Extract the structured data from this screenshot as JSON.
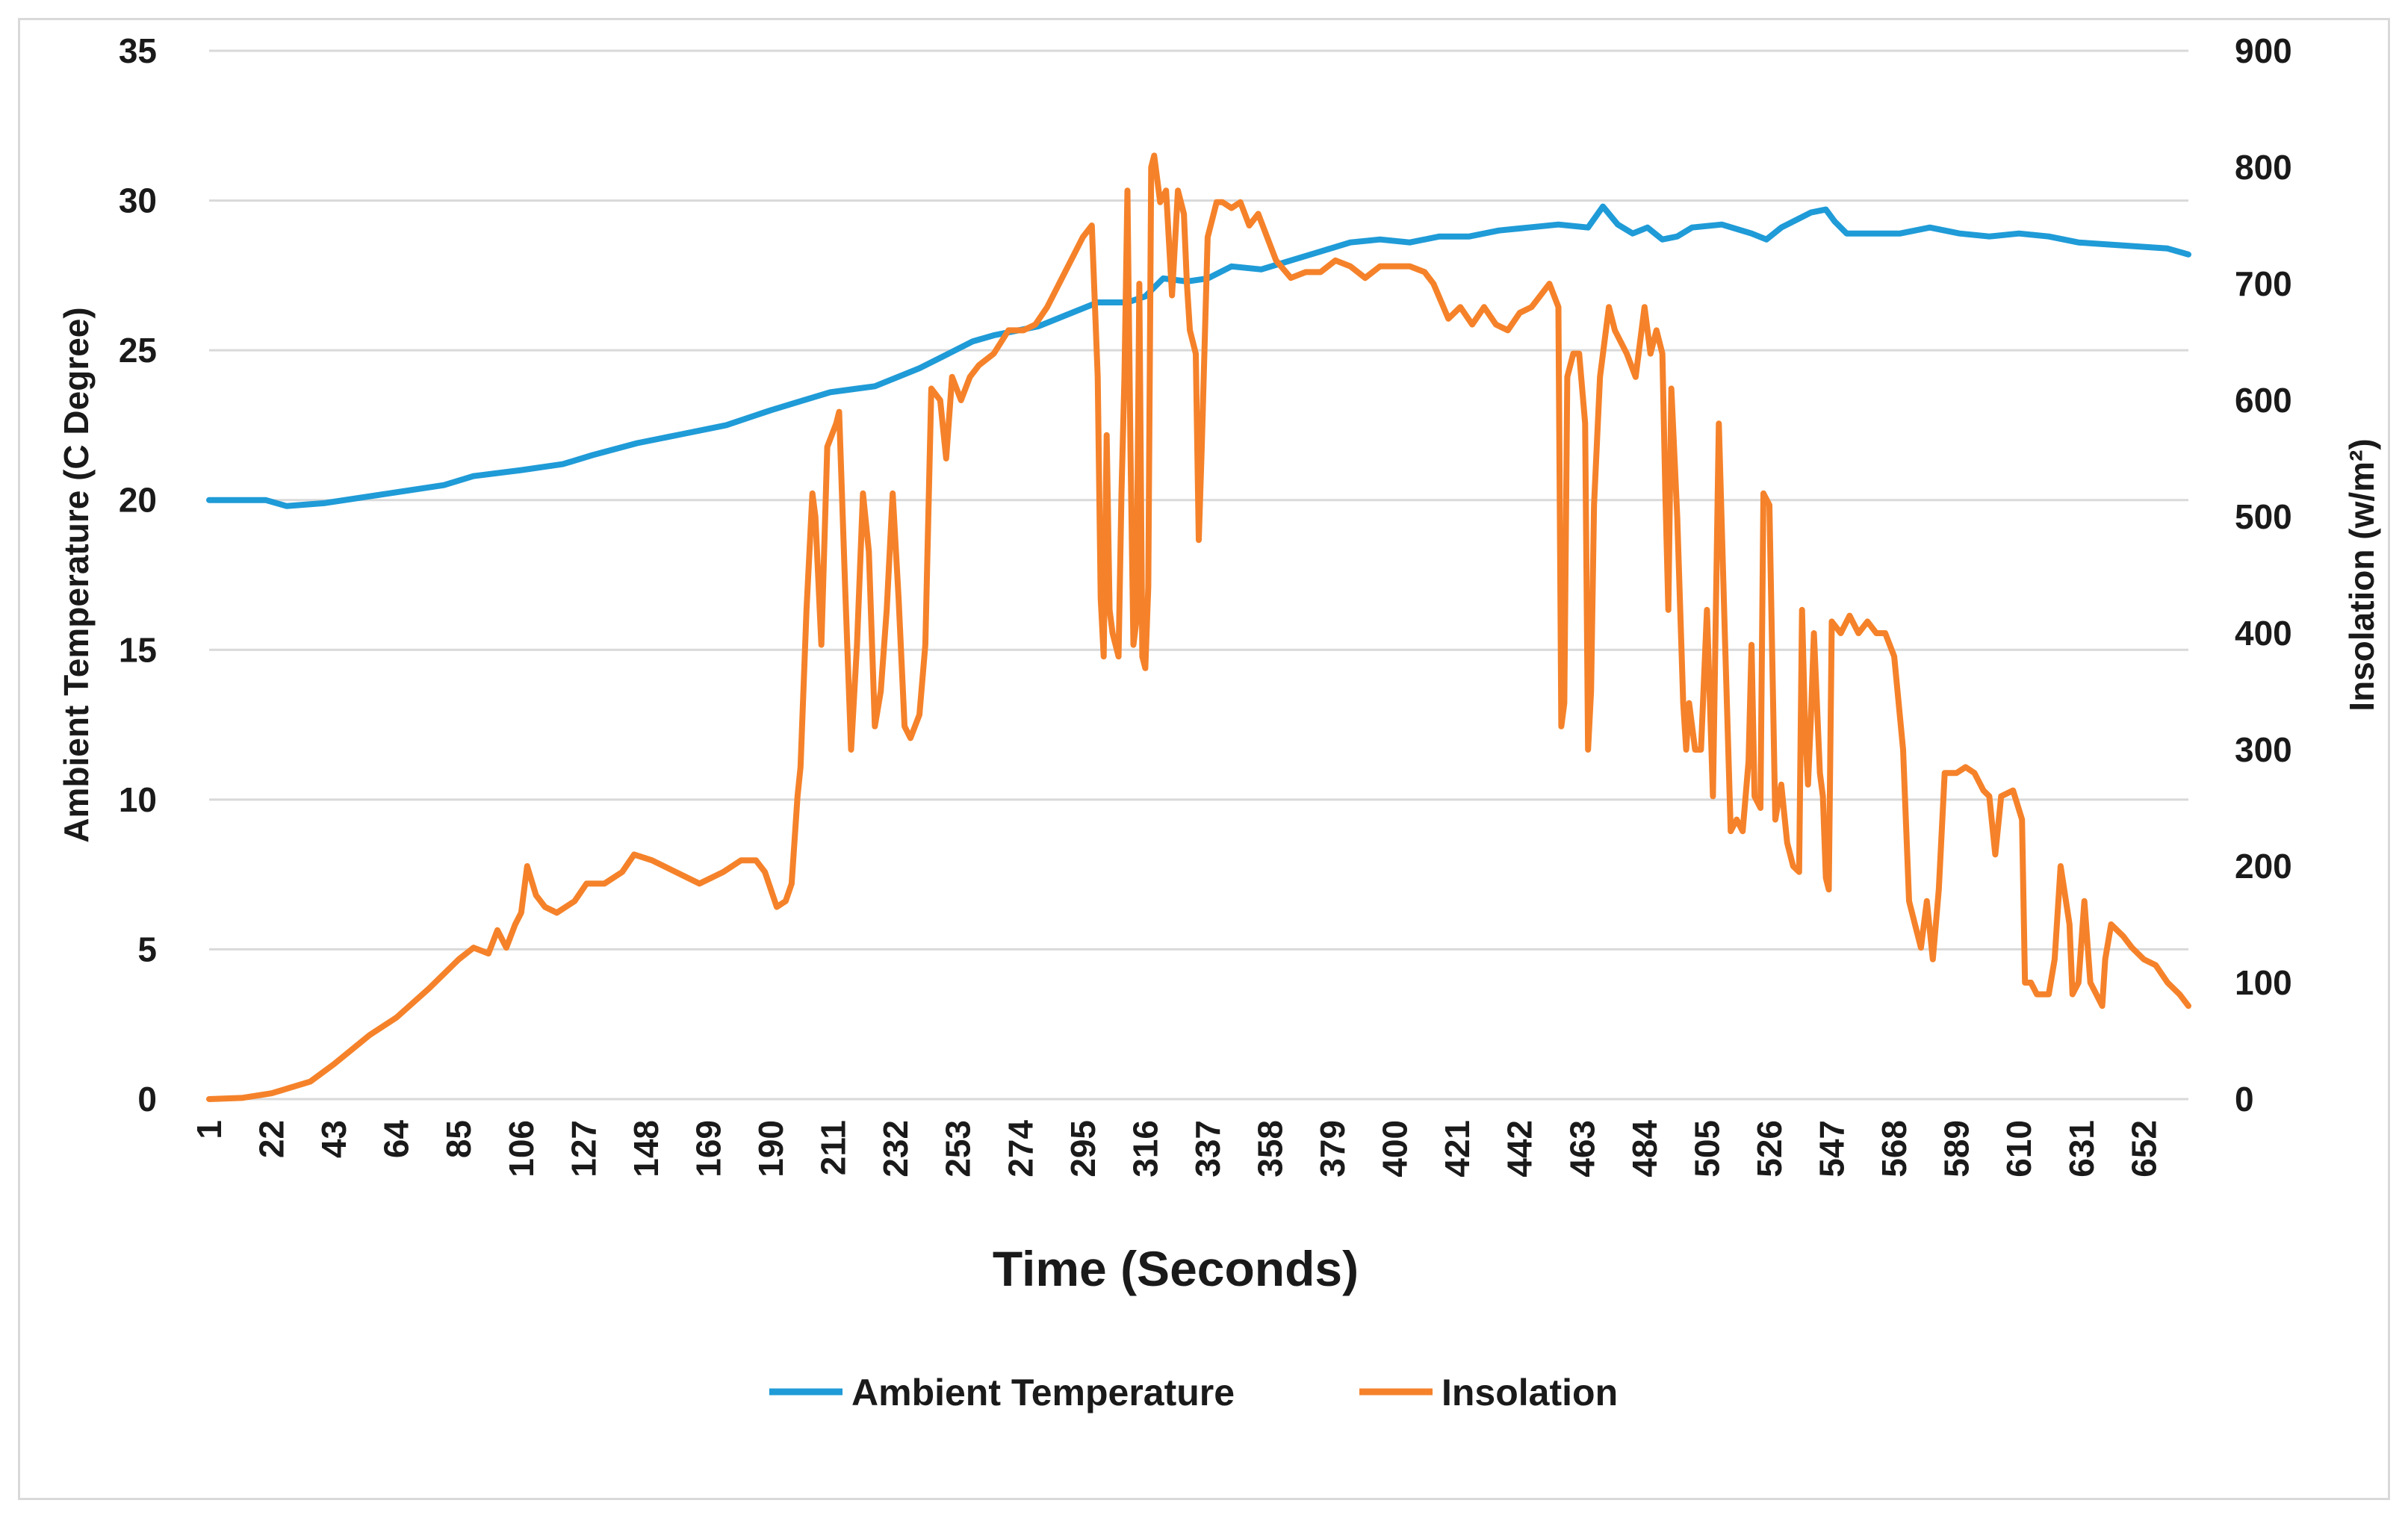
{
  "chart_data": {
    "type": "line",
    "xlabel": "Time (Seconds)",
    "ylabel_left": "Ambient Temperature  (C Degree)",
    "ylabel_right": "Insolation (w/m²)",
    "x_tick_labels": [
      "1",
      "22",
      "43",
      "64",
      "85",
      "106",
      "127",
      "148",
      "169",
      "190",
      "211",
      "232",
      "253",
      "274",
      "295",
      "316",
      "337",
      "358",
      "379",
      "400",
      "421",
      "442",
      "463",
      "484",
      "505",
      "526",
      "547",
      "568",
      "589",
      "610",
      "631",
      "652"
    ],
    "xlim": [
      1,
      667
    ],
    "ylim_left": [
      0,
      35
    ],
    "yticks_left": [
      0,
      5,
      10,
      15,
      20,
      25,
      30,
      35
    ],
    "ylim_right": [
      0,
      900
    ],
    "yticks_right": [
      0,
      100,
      200,
      300,
      400,
      500,
      600,
      700,
      800,
      900
    ],
    "grid": "horizontal",
    "legend_position": "bottom",
    "series": [
      {
        "name": "Ambient Temperature",
        "axis": "left",
        "color": "#1f9bd7",
        "points": [
          [
            1,
            20.0
          ],
          [
            20,
            20.0
          ],
          [
            27,
            19.8
          ],
          [
            40,
            19.9
          ],
          [
            60,
            20.2
          ],
          [
            80,
            20.5
          ],
          [
            90,
            20.8
          ],
          [
            106,
            21.0
          ],
          [
            120,
            21.2
          ],
          [
            130,
            21.5
          ],
          [
            145,
            21.9
          ],
          [
            160,
            22.2
          ],
          [
            175,
            22.5
          ],
          [
            190,
            23.0
          ],
          [
            200,
            23.3
          ],
          [
            210,
            23.6
          ],
          [
            225,
            23.8
          ],
          [
            240,
            24.4
          ],
          [
            250,
            24.9
          ],
          [
            258,
            25.3
          ],
          [
            265,
            25.5
          ],
          [
            280,
            25.8
          ],
          [
            290,
            26.2
          ],
          [
            300,
            26.6
          ],
          [
            310,
            26.6
          ],
          [
            316,
            26.8
          ],
          [
            322,
            27.4
          ],
          [
            330,
            27.3
          ],
          [
            337,
            27.4
          ],
          [
            345,
            27.8
          ],
          [
            355,
            27.7
          ],
          [
            365,
            28.0
          ],
          [
            375,
            28.3
          ],
          [
            385,
            28.6
          ],
          [
            395,
            28.7
          ],
          [
            405,
            28.6
          ],
          [
            415,
            28.8
          ],
          [
            425,
            28.8
          ],
          [
            435,
            29.0
          ],
          [
            445,
            29.1
          ],
          [
            455,
            29.2
          ],
          [
            465,
            29.1
          ],
          [
            470,
            29.8
          ],
          [
            475,
            29.2
          ],
          [
            480,
            28.9
          ],
          [
            485,
            29.1
          ],
          [
            490,
            28.7
          ],
          [
            495,
            28.8
          ],
          [
            500,
            29.1
          ],
          [
            510,
            29.2
          ],
          [
            520,
            28.9
          ],
          [
            525,
            28.7
          ],
          [
            530,
            29.1
          ],
          [
            540,
            29.6
          ],
          [
            545,
            29.7
          ],
          [
            548,
            29.3
          ],
          [
            552,
            28.9
          ],
          [
            560,
            28.9
          ],
          [
            570,
            28.9
          ],
          [
            580,
            29.1
          ],
          [
            590,
            28.9
          ],
          [
            600,
            28.8
          ],
          [
            610,
            28.9
          ],
          [
            620,
            28.8
          ],
          [
            630,
            28.6
          ],
          [
            645,
            28.5
          ],
          [
            660,
            28.4
          ],
          [
            667,
            28.2
          ]
        ]
      },
      {
        "name": "Insolation",
        "axis": "right",
        "color": "#f5822a",
        "points": [
          [
            1,
            0
          ],
          [
            12,
            1
          ],
          [
            22,
            5
          ],
          [
            35,
            15
          ],
          [
            43,
            30
          ],
          [
            55,
            55
          ],
          [
            64,
            70
          ],
          [
            75,
            95
          ],
          [
            85,
            120
          ],
          [
            90,
            130
          ],
          [
            95,
            125
          ],
          [
            98,
            145
          ],
          [
            101,
            130
          ],
          [
            104,
            150
          ],
          [
            106,
            160
          ],
          [
            108,
            200
          ],
          [
            111,
            175
          ],
          [
            114,
            165
          ],
          [
            118,
            160
          ],
          [
            124,
            170
          ],
          [
            128,
            185
          ],
          [
            134,
            185
          ],
          [
            140,
            195
          ],
          [
            144,
            210
          ],
          [
            150,
            205
          ],
          [
            158,
            195
          ],
          [
            166,
            185
          ],
          [
            174,
            195
          ],
          [
            180,
            205
          ],
          [
            185,
            205
          ],
          [
            188,
            195
          ],
          [
            192,
            165
          ],
          [
            195,
            170
          ],
          [
            197,
            185
          ],
          [
            199,
            260
          ],
          [
            200,
            285
          ],
          [
            202,
            420
          ],
          [
            204,
            520
          ],
          [
            205,
            500
          ],
          [
            207,
            390
          ],
          [
            209,
            560
          ],
          [
            212,
            580
          ],
          [
            213,
            590
          ],
          [
            215,
            440
          ],
          [
            217,
            300
          ],
          [
            219,
            390
          ],
          [
            221,
            520
          ],
          [
            223,
            470
          ],
          [
            225,
            320
          ],
          [
            227,
            350
          ],
          [
            229,
            420
          ],
          [
            231,
            520
          ],
          [
            233,
            430
          ],
          [
            235,
            320
          ],
          [
            237,
            310
          ],
          [
            240,
            330
          ],
          [
            242,
            390
          ],
          [
            244,
            610
          ],
          [
            247,
            600
          ],
          [
            249,
            550
          ],
          [
            251,
            620
          ],
          [
            254,
            600
          ],
          [
            257,
            620
          ],
          [
            260,
            630
          ],
          [
            265,
            640
          ],
          [
            270,
            660
          ],
          [
            275,
            660
          ],
          [
            279,
            665
          ],
          [
            283,
            680
          ],
          [
            287,
            700
          ],
          [
            291,
            720
          ],
          [
            295,
            740
          ],
          [
            298,
            750
          ],
          [
            300,
            620
          ],
          [
            301,
            430
          ],
          [
            302,
            380
          ],
          [
            303,
            570
          ],
          [
            304,
            420
          ],
          [
            305,
            400
          ],
          [
            307,
            380
          ],
          [
            308,
            520
          ],
          [
            309,
            620
          ],
          [
            310,
            780
          ],
          [
            311,
            560
          ],
          [
            312,
            390
          ],
          [
            313,
            410
          ],
          [
            314,
            700
          ],
          [
            315,
            380
          ],
          [
            316,
            370
          ],
          [
            317,
            440
          ],
          [
            318,
            800
          ],
          [
            319,
            810
          ],
          [
            321,
            770
          ],
          [
            323,
            780
          ],
          [
            325,
            690
          ],
          [
            327,
            780
          ],
          [
            329,
            760
          ],
          [
            330,
            700
          ],
          [
            331,
            660
          ],
          [
            333,
            640
          ],
          [
            334,
            480
          ],
          [
            335,
            560
          ],
          [
            337,
            740
          ],
          [
            340,
            770
          ],
          [
            342,
            770
          ],
          [
            345,
            765
          ],
          [
            348,
            770
          ],
          [
            351,
            750
          ],
          [
            354,
            760
          ],
          [
            357,
            740
          ],
          [
            360,
            720
          ],
          [
            365,
            705
          ],
          [
            370,
            710
          ],
          [
            375,
            710
          ],
          [
            380,
            720
          ],
          [
            385,
            715
          ],
          [
            390,
            705
          ],
          [
            395,
            715
          ],
          [
            400,
            715
          ],
          [
            405,
            715
          ],
          [
            410,
            710
          ],
          [
            413,
            700
          ],
          [
            418,
            670
          ],
          [
            422,
            680
          ],
          [
            426,
            665
          ],
          [
            430,
            680
          ],
          [
            434,
            665
          ],
          [
            438,
            660
          ],
          [
            442,
            675
          ],
          [
            446,
            680
          ],
          [
            449,
            690
          ],
          [
            452,
            700
          ],
          [
            455,
            680
          ],
          [
            456,
            320
          ],
          [
            457,
            340
          ],
          [
            458,
            620
          ],
          [
            460,
            640
          ],
          [
            462,
            640
          ],
          [
            464,
            580
          ],
          [
            465,
            300
          ],
          [
            466,
            350
          ],
          [
            467,
            510
          ],
          [
            469,
            620
          ],
          [
            472,
            680
          ],
          [
            474,
            660
          ],
          [
            478,
            640
          ],
          [
            481,
            620
          ],
          [
            484,
            680
          ],
          [
            486,
            640
          ],
          [
            488,
            660
          ],
          [
            490,
            640
          ],
          [
            491,
            520
          ],
          [
            492,
            420
          ],
          [
            493,
            610
          ],
          [
            495,
            500
          ],
          [
            497,
            340
          ],
          [
            498,
            300
          ],
          [
            499,
            340
          ],
          [
            501,
            300
          ],
          [
            503,
            300
          ],
          [
            505,
            420
          ],
          [
            507,
            260
          ],
          [
            509,
            580
          ],
          [
            511,
            400
          ],
          [
            513,
            230
          ],
          [
            515,
            240
          ],
          [
            517,
            230
          ],
          [
            519,
            290
          ],
          [
            520,
            390
          ],
          [
            521,
            260
          ],
          [
            523,
            250
          ],
          [
            524,
            520
          ],
          [
            526,
            510
          ],
          [
            528,
            240
          ],
          [
            530,
            270
          ],
          [
            532,
            220
          ],
          [
            534,
            200
          ],
          [
            536,
            195
          ],
          [
            537,
            420
          ],
          [
            538,
            320
          ],
          [
            539,
            270
          ],
          [
            540,
            330
          ],
          [
            541,
            400
          ],
          [
            543,
            280
          ],
          [
            544,
            260
          ],
          [
            545,
            190
          ],
          [
            546,
            180
          ],
          [
            547,
            410
          ],
          [
            550,
            400
          ],
          [
            553,
            415
          ],
          [
            556,
            400
          ],
          [
            559,
            410
          ],
          [
            562,
            400
          ],
          [
            565,
            400
          ],
          [
            568,
            380
          ],
          [
            571,
            300
          ],
          [
            573,
            170
          ],
          [
            575,
            150
          ],
          [
            577,
            130
          ],
          [
            579,
            170
          ],
          [
            581,
            120
          ],
          [
            583,
            180
          ],
          [
            585,
            280
          ],
          [
            589,
            280
          ],
          [
            592,
            285
          ],
          [
            595,
            280
          ],
          [
            598,
            265
          ],
          [
            600,
            260
          ],
          [
            602,
            210
          ],
          [
            604,
            260
          ],
          [
            608,
            265
          ],
          [
            611,
            240
          ],
          [
            612,
            100
          ],
          [
            614,
            100
          ],
          [
            616,
            90
          ],
          [
            620,
            90
          ],
          [
            622,
            120
          ],
          [
            624,
            200
          ],
          [
            627,
            150
          ],
          [
            628,
            90
          ],
          [
            630,
            100
          ],
          [
            632,
            170
          ],
          [
            634,
            100
          ],
          [
            636,
            90
          ],
          [
            638,
            80
          ],
          [
            639,
            120
          ],
          [
            641,
            150
          ],
          [
            645,
            140
          ],
          [
            648,
            130
          ],
          [
            652,
            120
          ],
          [
            656,
            115
          ],
          [
            660,
            100
          ],
          [
            664,
            90
          ],
          [
            667,
            80
          ]
        ]
      }
    ]
  }
}
